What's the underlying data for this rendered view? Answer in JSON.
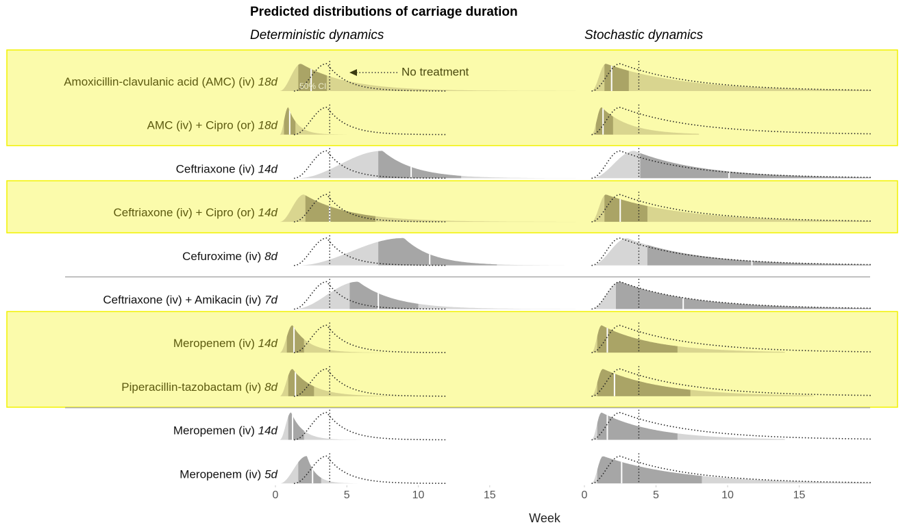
{
  "chart_data": {
    "type": "ridgeline",
    "title": "Predicted distributions of carriage duration",
    "panels": [
      {
        "title": "Deterministic dynamics",
        "xlim": [
          0,
          21.1
        ],
        "xticks": [
          0,
          5,
          10,
          15
        ]
      },
      {
        "title": "Stochastic dynamics",
        "xlim": [
          0,
          20
        ],
        "xticks": [
          0,
          5,
          10,
          15
        ]
      }
    ],
    "xlabel": "Week",
    "reference_line": 3.8,
    "no_treatment": [
      {
        "start": 1.3,
        "mode": 3.6,
        "end": 12
      },
      {
        "start": 0.5,
        "mode": 2.5,
        "end": 20
      }
    ],
    "annotations": {
      "no_treatment": "No treatment",
      "ci": "50% CI"
    },
    "colors": {
      "highlight_light": "#d9d58f",
      "highlight_dark": "#aaa466",
      "light": "#d6d6d6",
      "dark": "#a6a6a6",
      "box": "#fbfbab",
      "box_border": "#f2f200"
    },
    "rows": [
      {
        "name": "Amoxicillin-clavulanic acid (AMC) (iv)",
        "duration": "18d",
        "highlight": true,
        "separator_before": false,
        "dists": [
          {
            "start": 0.3,
            "mode": 1.8,
            "end": 21,
            "q25": 1.6,
            "median": 2.5,
            "q75": 3.6
          },
          {
            "start": 0.5,
            "mode": 1.5,
            "end": 20,
            "q25": 1.4,
            "median": 1.9,
            "q75": 3.1
          }
        ]
      },
      {
        "name": "AMC (iv) + Cipro (or)",
        "duration": "18d",
        "highlight": true,
        "separator_before": false,
        "dists": [
          {
            "start": 0.3,
            "mode": 0.9,
            "end": 5,
            "q25": 0.6,
            "median": 1.0,
            "q75": 1.4
          },
          {
            "start": 0.5,
            "mode": 1.2,
            "end": 8,
            "q25": 0.8,
            "median": 1.3,
            "q75": 2.0
          }
        ]
      },
      {
        "name": "Ceftriaxone (iv)",
        "duration": "14d",
        "highlight": false,
        "separator_before": false,
        "dists": [
          {
            "start": 1.5,
            "mode": 7.5,
            "end": 21,
            "q25": 7.2,
            "median": 9.5,
            "q75": 13
          },
          {
            "start": 0.5,
            "mode": 3.5,
            "end": 20,
            "q25": 3.9,
            "median": 10.1,
            "q75": 20
          }
        ]
      },
      {
        "name": "Ceftriaxone (iv) + Cipro (or)",
        "duration": "14d",
        "highlight": true,
        "separator_before": false,
        "dists": [
          {
            "start": 0.3,
            "mode": 2.0,
            "end": 21,
            "q25": 2.1,
            "median": 3.8,
            "q75": 7
          },
          {
            "start": 0.5,
            "mode": 1.5,
            "end": 20,
            "q25": 1.4,
            "median": 2.5,
            "q75": 4.4
          }
        ]
      },
      {
        "name": "Cefuroxime (iv)",
        "duration": "8d",
        "highlight": false,
        "separator_before": false,
        "dists": [
          {
            "start": 1.5,
            "mode": 9,
            "end": 21,
            "q25": 7.2,
            "median": 10.8,
            "q75": 15.5
          },
          {
            "start": 0.5,
            "mode": 3,
            "end": 20,
            "q25": 4.4,
            "median": 11.7,
            "q75": 20
          }
        ]
      },
      {
        "name": "Ceftriaxone (iv) + Amikacin (iv)",
        "duration": "7d",
        "highlight": false,
        "separator_before": true,
        "dists": [
          {
            "start": 1.3,
            "mode": 5.8,
            "end": 21,
            "q25": 5.2,
            "median": 7.2,
            "q75": 10
          },
          {
            "start": 0.5,
            "mode": 2.5,
            "end": 20,
            "q25": 2.2,
            "median": 6.9,
            "q75": 20
          }
        ]
      },
      {
        "name": "Meropenem (iv)",
        "duration": "14d",
        "highlight": true,
        "separator_before": false,
        "dists": [
          {
            "start": 0.3,
            "mode": 1.2,
            "end": 8,
            "q25": 0.8,
            "median": 1.3,
            "q75": 2.0
          },
          {
            "start": 0.5,
            "mode": 1.2,
            "end": 14,
            "q25": 0.9,
            "median": 1.6,
            "q75": 6.5
          }
        ]
      },
      {
        "name": "Piperacillin-tazobactam (iv)",
        "duration": "8d",
        "highlight": true,
        "separator_before": false,
        "dists": [
          {
            "start": 0.3,
            "mode": 1.2,
            "end": 10,
            "q25": 0.9,
            "median": 1.4,
            "q75": 2.7
          },
          {
            "start": 0.5,
            "mode": 1.3,
            "end": 16,
            "q25": 0.9,
            "median": 2.1,
            "q75": 7.4
          }
        ]
      },
      {
        "name": "Meropemen (iv)",
        "duration": "14d",
        "highlight": false,
        "separator_before": true,
        "dists": [
          {
            "start": 0.3,
            "mode": 1.1,
            "end": 6,
            "q25": 0.9,
            "median": 1.2,
            "q75": 2.0
          },
          {
            "start": 0.5,
            "mode": 1.2,
            "end": 14,
            "q25": 0.9,
            "median": 1.6,
            "q75": 6.5
          }
        ]
      },
      {
        "name": "Meropenem (iv)",
        "duration": "5d",
        "highlight": false,
        "separator_before": false,
        "dists": [
          {
            "start": 0.3,
            "mode": 2.2,
            "end": 6,
            "q25": 1.6,
            "median": 2.6,
            "q75": 3.2
          },
          {
            "start": 0.5,
            "mode": 1.3,
            "end": 20,
            "q25": 0.9,
            "median": 2.6,
            "q75": 8.2
          }
        ]
      }
    ]
  }
}
